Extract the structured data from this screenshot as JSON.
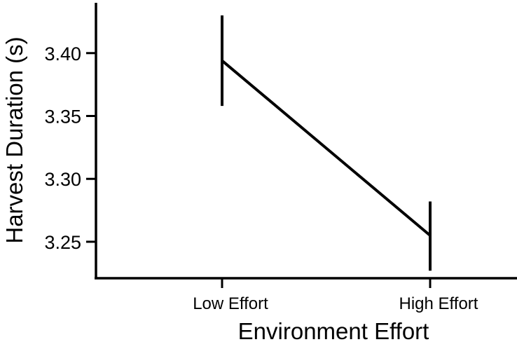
{
  "chart_data": {
    "type": "line",
    "title": "",
    "xlabel": "Environment Effort",
    "ylabel": "Harvest Duration (s)",
    "categories": [
      "Low Effort",
      "High Effort"
    ],
    "series": [
      {
        "values": [
          3.394,
          3.255
        ],
        "error_low": [
          3.358,
          3.227
        ],
        "error_high": [
          3.43,
          3.282
        ]
      }
    ],
    "yticks": [
      3.25,
      3.3,
      3.35,
      3.4
    ],
    "ytick_labels": [
      "3.25",
      "3.30",
      "3.35",
      "3.40"
    ],
    "ylim": [
      3.221,
      3.44
    ],
    "grid": false,
    "line_color": "#000000"
  }
}
